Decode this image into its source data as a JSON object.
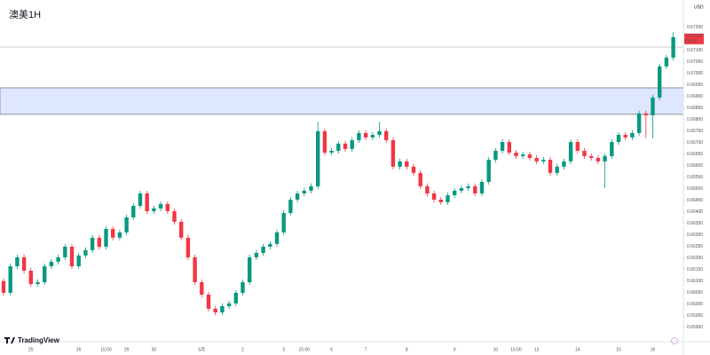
{
  "chart_data": {
    "type": "candlestick",
    "title": "澳美1H",
    "currency": "USD",
    "countdown": "00:26",
    "brand": "TradingView",
    "up_color": "#089981",
    "down_color": "#f23645",
    "zone": [
      0.66823,
      0.66938
    ],
    "zone_color": "#dfe6ff",
    "hline": 0.67115,
    "ylim": [
      0.65837,
      0.67319
    ],
    "yticks": [
      {
        "value": 0.672,
        "label": "0.67200"
      },
      {
        "value": 0.6715,
        "label": "0.67150"
      },
      {
        "value": 0.671,
        "label": "0.67100"
      },
      {
        "value": 0.6705,
        "label": "0.67050"
      },
      {
        "value": 0.67,
        "label": "0.67000"
      },
      {
        "value": 0.6695,
        "label": "0.66950"
      },
      {
        "value": 0.669,
        "label": "0.66900"
      },
      {
        "value": 0.6685,
        "label": "0.66850"
      },
      {
        "value": 0.668,
        "label": "0.66800"
      },
      {
        "value": 0.6675,
        "label": "0.66750"
      },
      {
        "value": 0.667,
        "label": "0.66700"
      },
      {
        "value": 0.6665,
        "label": "0.66650"
      },
      {
        "value": 0.666,
        "label": "0.66600"
      },
      {
        "value": 0.6655,
        "label": "0.66550"
      },
      {
        "value": 0.665,
        "label": "0.66500"
      },
      {
        "value": 0.6645,
        "label": "0.66450"
      },
      {
        "value": 0.664,
        "label": "0.66400"
      },
      {
        "value": 0.6635,
        "label": "0.66350"
      },
      {
        "value": 0.663,
        "label": "0.66300"
      },
      {
        "value": 0.6625,
        "label": "0.66250"
      },
      {
        "value": 0.662,
        "label": "0.66200"
      },
      {
        "value": 0.6615,
        "label": "0.66150"
      },
      {
        "value": 0.661,
        "label": "0.66100"
      },
      {
        "value": 0.6605,
        "label": "0.66050"
      },
      {
        "value": 0.66,
        "label": "0.66000"
      },
      {
        "value": 0.6595,
        "label": "0.65950"
      },
      {
        "value": 0.659,
        "label": "0.65900"
      }
    ],
    "categories": [
      null,
      null,
      null,
      null,
      "25",
      null,
      null,
      null,
      null,
      null,
      null,
      "26",
      null,
      null,
      null,
      "15:00",
      null,
      null,
      "29",
      null,
      null,
      null,
      "30",
      null,
      null,
      null,
      null,
      null,
      null,
      "5月",
      null,
      null,
      null,
      null,
      null,
      "2",
      null,
      null,
      null,
      null,
      null,
      "3",
      null,
      null,
      "15:00",
      null,
      null,
      null,
      "6",
      null,
      null,
      null,
      null,
      "7",
      null,
      null,
      null,
      null,
      null,
      "8",
      null,
      null,
      null,
      null,
      null,
      null,
      "9",
      null,
      null,
      null,
      null,
      null,
      "10",
      null,
      null,
      "15:00",
      null,
      null,
      "13",
      null,
      null,
      null,
      null,
      null,
      "14",
      null,
      null,
      null,
      null,
      null,
      "15",
      null,
      null,
      null,
      null,
      "16",
      null,
      null,
      null
    ],
    "open": [
      0.661,
      0.66049,
      0.66164,
      0.66203,
      0.66145,
      0.66087,
      0.66095,
      0.66164,
      0.66184,
      0.66203,
      0.66249,
      0.66164,
      0.66211,
      0.66234,
      0.66288,
      0.66249,
      0.66326,
      0.66288,
      0.66311,
      0.66376,
      0.66426,
      0.6648,
      0.66403,
      0.66415,
      0.66434,
      0.66403,
      0.66357,
      0.66288,
      0.66203,
      0.66095,
      0.66041,
      0.6598,
      0.65964,
      0.65991,
      0.66003,
      0.66049,
      0.66095,
      0.66203,
      0.66222,
      0.66249,
      0.66261,
      0.66311,
      0.66395,
      0.66453,
      0.6648,
      0.66492,
      0.66511,
      0.6675,
      0.66657,
      0.66665,
      0.66696,
      0.66673,
      0.66711,
      0.66742,
      0.66723,
      0.66734,
      0.6675,
      0.66711,
      0.66596,
      0.66619,
      0.66596,
      0.66569,
      0.66511,
      0.6648,
      0.66453,
      0.66442,
      0.66472,
      0.66492,
      0.66503,
      0.66511,
      0.6648,
      0.6653,
      0.66626,
      0.66665,
      0.66703,
      0.66657,
      0.66642,
      0.66649,
      0.66634,
      0.66619,
      0.66626,
      0.66569,
      0.66596,
      0.66619,
      0.66703,
      0.66665,
      0.66642,
      0.66634,
      0.66619,
      0.66642,
      0.66703,
      0.66734,
      0.66723,
      0.66742,
      0.66827,
      0.66819,
      0.66896,
      0.67031,
      0.67069
    ],
    "high": [
      0.66112,
      0.66176,
      0.66215,
      0.66215,
      0.66157,
      0.66107,
      0.66176,
      0.66196,
      0.66215,
      0.66261,
      0.66261,
      0.66223,
      0.66246,
      0.663,
      0.663,
      0.66338,
      0.66338,
      0.66323,
      0.66388,
      0.66438,
      0.66492,
      0.66492,
      0.66427,
      0.66446,
      0.66446,
      0.66415,
      0.66369,
      0.663,
      0.66215,
      0.66107,
      0.66053,
      0.65992,
      0.66003,
      0.66015,
      0.66061,
      0.66107,
      0.66215,
      0.66234,
      0.66261,
      0.66273,
      0.66323,
      0.66407,
      0.66465,
      0.66492,
      0.66504,
      0.66523,
      0.6679,
      0.66762,
      0.66677,
      0.66708,
      0.66708,
      0.66723,
      0.66754,
      0.66754,
      0.66746,
      0.6679,
      0.66762,
      0.66723,
      0.66631,
      0.66631,
      0.66608,
      0.66581,
      0.66523,
      0.66492,
      0.66465,
      0.66484,
      0.66504,
      0.66515,
      0.66523,
      0.66523,
      0.66542,
      0.66638,
      0.66677,
      0.66715,
      0.66715,
      0.66669,
      0.66661,
      0.66661,
      0.66646,
      0.66638,
      0.66638,
      0.66608,
      0.66631,
      0.66715,
      0.66715,
      0.66677,
      0.66654,
      0.66646,
      0.66654,
      0.66715,
      0.66746,
      0.66746,
      0.66754,
      0.66839,
      0.66839,
      0.66908,
      0.67043,
      0.67081,
      0.6718
    ],
    "low": [
      0.66037,
      0.66037,
      0.66152,
      0.66133,
      0.66075,
      0.66075,
      0.66083,
      0.66152,
      0.66172,
      0.66191,
      0.66152,
      0.66152,
      0.66199,
      0.66222,
      0.66237,
      0.66237,
      0.66276,
      0.66276,
      0.66299,
      0.66364,
      0.66414,
      0.66391,
      0.66391,
      0.66403,
      0.66391,
      0.66345,
      0.66276,
      0.66191,
      0.66083,
      0.66029,
      0.65968,
      0.65952,
      0.65952,
      0.65979,
      0.65991,
      0.66037,
      0.66083,
      0.66191,
      0.6621,
      0.66237,
      0.66249,
      0.66299,
      0.66383,
      0.66441,
      0.66468,
      0.6648,
      0.66499,
      0.66645,
      0.66645,
      0.66653,
      0.66661,
      0.66661,
      0.66699,
      0.66711,
      0.66711,
      0.66722,
      0.66699,
      0.66584,
      0.66584,
      0.66584,
      0.66557,
      0.66499,
      0.66468,
      0.66441,
      0.6643,
      0.6643,
      0.6646,
      0.6648,
      0.66491,
      0.66468,
      0.66468,
      0.66518,
      0.66614,
      0.66653,
      0.66645,
      0.6663,
      0.6663,
      0.66622,
      0.66607,
      0.66607,
      0.66557,
      0.66557,
      0.66584,
      0.66607,
      0.66653,
      0.6663,
      0.66622,
      0.66607,
      0.66503,
      0.6663,
      0.66691,
      0.66711,
      0.66711,
      0.6673,
      0.6672,
      0.6672,
      0.66884,
      0.67019,
      0.67057
    ],
    "close": [
      0.66049,
      0.66164,
      0.66203,
      0.66145,
      0.66087,
      0.66095,
      0.66164,
      0.66184,
      0.66203,
      0.66249,
      0.66164,
      0.66211,
      0.66234,
      0.66288,
      0.66249,
      0.66326,
      0.66288,
      0.66311,
      0.66376,
      0.66426,
      0.6648,
      0.66403,
      0.66415,
      0.66434,
      0.66403,
      0.66357,
      0.66288,
      0.66203,
      0.66095,
      0.66041,
      0.6598,
      0.65964,
      0.65991,
      0.66003,
      0.66049,
      0.66095,
      0.66203,
      0.66222,
      0.66249,
      0.66261,
      0.66311,
      0.66395,
      0.66453,
      0.6648,
      0.66492,
      0.66511,
      0.6675,
      0.66657,
      0.66665,
      0.66696,
      0.66673,
      0.66711,
      0.66742,
      0.66723,
      0.66734,
      0.6675,
      0.66711,
      0.66596,
      0.66619,
      0.66596,
      0.66569,
      0.66511,
      0.6648,
      0.66453,
      0.66442,
      0.66472,
      0.66492,
      0.66503,
      0.66511,
      0.6648,
      0.6653,
      0.66626,
      0.66665,
      0.66703,
      0.66657,
      0.66642,
      0.66649,
      0.66634,
      0.66619,
      0.66626,
      0.66569,
      0.66596,
      0.66619,
      0.66703,
      0.66665,
      0.66642,
      0.66634,
      0.66619,
      0.66642,
      0.66703,
      0.66734,
      0.66723,
      0.66742,
      0.66827,
      0.66819,
      0.66896,
      0.67031,
      0.67069,
      0.67158
    ]
  }
}
